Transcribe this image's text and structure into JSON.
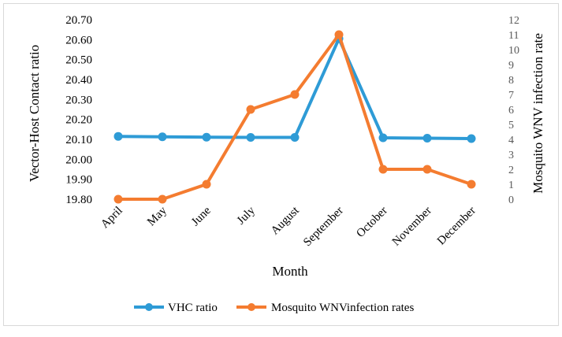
{
  "chart_data": {
    "type": "line",
    "title": "",
    "categories": [
      "April",
      "May",
      "June",
      "July",
      "August",
      "September",
      "October",
      "November",
      "December"
    ],
    "xlabel": "Month",
    "ylabel": "Vector-Host Contact ratio",
    "y2label": "Mosquito WNV infection rate",
    "ylim": [
      19.8,
      20.7
    ],
    "y2lim": [
      0,
      12
    ],
    "yticks": [
      "19.80",
      "19.90",
      "20.00",
      "20.10",
      "20.20",
      "20.30",
      "20.40",
      "20.50",
      "20.60",
      "20.70"
    ],
    "y2ticks": [
      "0",
      "1",
      "2",
      "3",
      "4",
      "5",
      "6",
      "7",
      "8",
      "9",
      "10",
      "11",
      "12"
    ],
    "grid": false,
    "legend_position": "bottom",
    "series": [
      {
        "name": "VHC ratio",
        "axis": "left",
        "color": "#2E9BD6",
        "values": [
          20.115,
          20.113,
          20.111,
          20.11,
          20.11,
          20.605,
          20.108,
          20.106,
          20.104
        ]
      },
      {
        "name": "Mosquito WNVinfection rates",
        "axis": "right",
        "color": "#F47C30",
        "values": [
          0,
          0,
          1,
          6,
          7,
          11,
          2,
          2,
          1
        ]
      }
    ]
  }
}
